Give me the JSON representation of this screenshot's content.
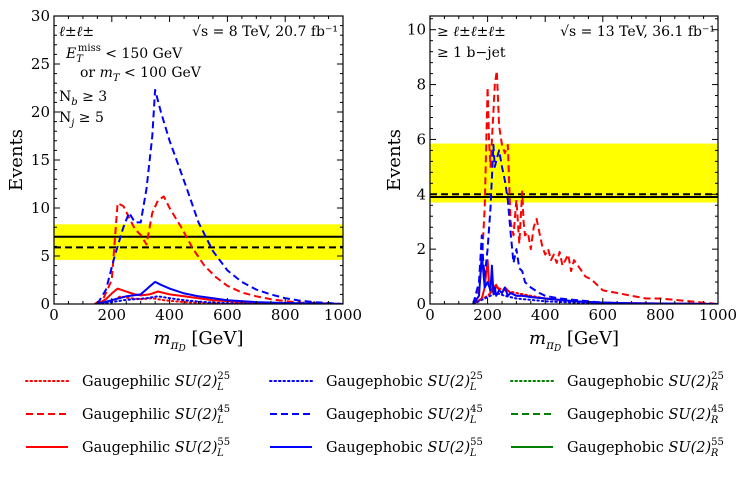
{
  "chart_data": [
    {
      "type": "line",
      "panel": "left",
      "xlabel": "m_{πD} [GeV]",
      "ylabel": "Events",
      "xlim": [
        0,
        1000
      ],
      "ylim": [
        0,
        30
      ],
      "xticks": [
        0,
        200,
        400,
        600,
        800,
        1000
      ],
      "yticks": [
        0,
        5,
        10,
        15,
        20,
        25,
        30
      ],
      "annotations": [
        "ℓ±ℓ±",
        "√s = 8 TeV, 20.7 fb⁻¹",
        "E_T^miss < 150 GeV",
        "or m_T < 100 GeV",
        "N_b ≥ 3",
        "N_j ≥ 5"
      ],
      "band": {
        "color": "#ffff00",
        "ymin": 4.6,
        "ymax": 8.3
      },
      "observed_line": {
        "y": 7.0,
        "style": "solid",
        "color": "#000000"
      },
      "expected_line": {
        "y": 5.9,
        "style": "dashed",
        "color": "#000000"
      },
      "series": [
        {
          "name": "Gaugephilic SU(2)_L^25",
          "color": "#ff0000",
          "style": "dotted",
          "x": [
            150,
            200,
            230,
            260,
            300,
            340,
            380,
            450,
            550,
            700
          ],
          "y": [
            0,
            0.3,
            0.8,
            0.6,
            0.5,
            0.6,
            0.4,
            0.2,
            0.05,
            0
          ]
        },
        {
          "name": "Gaugephilic SU(2)_L^45",
          "color": "#ff0000",
          "style": "dashed",
          "x": [
            140,
            170,
            200,
            220,
            240,
            260,
            280,
            300,
            320,
            340,
            360,
            380,
            400,
            440,
            480,
            520,
            560,
            600,
            650,
            700,
            750,
            800,
            850,
            900,
            1000
          ],
          "y": [
            0,
            0.5,
            2.5,
            10.5,
            10.2,
            9.0,
            7.8,
            7.2,
            6.2,
            9.5,
            10.8,
            11.2,
            10.0,
            8.0,
            5.8,
            4.0,
            2.8,
            1.9,
            1.2,
            0.8,
            0.5,
            0.3,
            0.15,
            0.1,
            0
          ]
        },
        {
          "name": "Gaugephilic SU(2)_L^55",
          "color": "#ff0000",
          "style": "solid",
          "x": [
            150,
            180,
            200,
            220,
            240,
            260,
            280,
            300,
            330,
            360,
            400,
            450,
            500,
            550,
            600,
            700,
            800,
            1000
          ],
          "y": [
            0,
            0.5,
            1.1,
            1.6,
            1.4,
            1.2,
            1.0,
            0.9,
            1.0,
            1.3,
            1.0,
            0.8,
            0.6,
            0.4,
            0.3,
            0.1,
            0.05,
            0
          ]
        },
        {
          "name": "Gaugephobic SU(2)_L^25",
          "color": "#0000ff",
          "style": "dotted",
          "x": [
            150,
            200,
            240,
            280,
            320,
            360,
            400,
            450,
            500,
            550,
            600,
            700
          ],
          "y": [
            0,
            0.2,
            0.4,
            0.5,
            0.6,
            0.8,
            0.6,
            0.4,
            0.25,
            0.15,
            0.08,
            0
          ]
        },
        {
          "name": "Gaugephobic SU(2)_L^45",
          "color": "#0000ff",
          "style": "dashed",
          "x": [
            150,
            180,
            210,
            240,
            260,
            280,
            300,
            320,
            340,
            350,
            370,
            400,
            430,
            460,
            500,
            550,
            600,
            650,
            700,
            750,
            800,
            850,
            900,
            1000
          ],
          "y": [
            0,
            1.5,
            5.0,
            8.0,
            9.5,
            8.5,
            8.5,
            12.0,
            17.5,
            22.3,
            20.0,
            17.0,
            14.5,
            12.0,
            8.5,
            5.5,
            3.5,
            2.3,
            1.5,
            1.0,
            0.6,
            0.35,
            0.2,
            0
          ]
        },
        {
          "name": "Gaugephobic SU(2)_L^55",
          "color": "#0000ff",
          "style": "solid",
          "x": [
            150,
            200,
            250,
            300,
            330,
            350,
            370,
            400,
            450,
            500,
            550,
            600,
            700,
            800,
            1000
          ],
          "y": [
            0,
            0.4,
            0.8,
            1.0,
            1.8,
            2.3,
            2.0,
            1.6,
            1.1,
            0.8,
            0.6,
            0.4,
            0.2,
            0.1,
            0
          ]
        }
      ]
    },
    {
      "type": "line",
      "panel": "right",
      "xlabel": "m_{πD} [GeV]",
      "ylabel": "Events",
      "xlim": [
        0,
        1000
      ],
      "ylim": [
        0,
        10.5
      ],
      "xticks": [
        0,
        200,
        400,
        600,
        800,
        1000
      ],
      "yticks": [
        0,
        2,
        4,
        6,
        8,
        10
      ],
      "annotations": [
        "≥ ℓ±ℓ±ℓ±",
        "√s = 13 TeV, 36.1 fb⁻¹",
        "≥ 1 b−jet"
      ],
      "band": {
        "color": "#ffff00",
        "ymin": 3.7,
        "ymax": 5.85
      },
      "observed_line": {
        "y": 3.9,
        "style": "solid",
        "color": "#000000"
      },
      "expected_line": {
        "y": 4.0,
        "style": "dashed",
        "color": "#000000"
      },
      "series": [
        {
          "name": "Gaugephilic SU(2)_L^25",
          "color": "#ff0000",
          "style": "dotted",
          "x": [
            150,
            200,
            230,
            260,
            300,
            350,
            400,
            500,
            600
          ],
          "y": [
            0,
            0.3,
            0.6,
            0.5,
            0.4,
            0.3,
            0.2,
            0.1,
            0
          ]
        },
        {
          "name": "Gaugephilic SU(2)_L^45",
          "color": "#ff0000",
          "style": "dashed",
          "x": [
            150,
            170,
            180,
            190,
            200,
            205,
            210,
            220,
            225,
            232,
            240,
            250,
            260,
            270,
            280,
            290,
            300,
            310,
            320,
            325,
            330,
            340,
            350,
            360,
            370,
            380,
            390,
            400,
            410,
            420,
            430,
            440,
            450,
            460,
            470,
            480,
            490,
            500,
            520,
            540,
            560,
            580,
            600,
            650,
            700,
            750,
            800,
            850,
            900,
            1000
          ],
          "y": [
            0,
            0.5,
            1.5,
            3.5,
            7.9,
            6.0,
            5.0,
            7.0,
            8.0,
            8.5,
            6.5,
            5.8,
            5.5,
            5.8,
            3.0,
            2.5,
            3.8,
            2.2,
            4.1,
            3.0,
            2.5,
            2.6,
            2.0,
            2.8,
            3.1,
            2.6,
            2.1,
            1.8,
            2.0,
            1.6,
            1.8,
            1.5,
            1.9,
            1.4,
            1.6,
            1.8,
            1.2,
            1.6,
            1.3,
            1.0,
            0.9,
            0.7,
            0.5,
            0.4,
            0.3,
            0.2,
            0.2,
            0.15,
            0.1,
            0
          ]
        },
        {
          "name": "Gaugephilic SU(2)_L^55",
          "color": "#ff0000",
          "style": "solid",
          "x": [
            150,
            180,
            190,
            200,
            205,
            210,
            220,
            230,
            240,
            250,
            260,
            270,
            280,
            300,
            330,
            360,
            400,
            450,
            500,
            600,
            700,
            800,
            1000
          ],
          "y": [
            0,
            0.2,
            0.6,
            1.6,
            0.8,
            0.4,
            0.6,
            0.7,
            0.5,
            0.4,
            0.6,
            0.5,
            0.4,
            0.3,
            0.3,
            0.25,
            0.2,
            0.15,
            0.1,
            0.05,
            0.03,
            0.02,
            0
          ]
        },
        {
          "name": "Gaugephobic SU(2)_L^25",
          "color": "#0000ff",
          "style": "dotted",
          "x": [
            150,
            190,
            230,
            260,
            300,
            350,
            400,
            500,
            600
          ],
          "y": [
            0,
            0.2,
            0.4,
            0.3,
            0.2,
            0.15,
            0.1,
            0.05,
            0
          ]
        },
        {
          "name": "Gaugephobic SU(2)_L^45",
          "color": "#0000ff",
          "style": "dashed",
          "x": [
            150,
            170,
            180,
            185,
            190,
            200,
            210,
            220,
            225,
            232,
            240,
            250,
            260,
            270,
            280,
            290,
            300,
            310,
            320,
            330,
            350,
            380,
            400,
            450,
            500,
            550,
            600,
            700,
            800,
            1000
          ],
          "y": [
            0,
            0.8,
            2.5,
            1.5,
            1.0,
            2.0,
            3.5,
            5.8,
            5.0,
            5.3,
            5.6,
            5.0,
            4.5,
            3.8,
            2.6,
            1.5,
            2.0,
            1.3,
            1.2,
            0.8,
            0.6,
            0.4,
            0.3,
            0.2,
            0.15,
            0.1,
            0.05,
            0.02,
            0.01,
            0
          ]
        },
        {
          "name": "Gaugephobic SU(2)_L^55",
          "color": "#0000ff",
          "style": "solid",
          "x": [
            150,
            170,
            180,
            190,
            200,
            210,
            215,
            220,
            225,
            230,
            240,
            250,
            260,
            270,
            280,
            300,
            320,
            350,
            400,
            450,
            500,
            600,
            700,
            800,
            1000
          ],
          "y": [
            0,
            0.3,
            1.8,
            0.6,
            0.8,
            0.5,
            1.4,
            0.4,
            0.6,
            0.3,
            0.5,
            0.4,
            0.6,
            0.3,
            0.4,
            0.3,
            0.3,
            0.25,
            0.2,
            0.15,
            0.1,
            0.05,
            0.03,
            0.02,
            0
          ]
        }
      ]
    }
  ],
  "legend": [
    {
      "base": "Gaugephilic",
      "group": "SU(2)",
      "sup": "25",
      "sub": "L",
      "color": "#ff0000",
      "style": "dotted"
    },
    {
      "base": "Gaugephobic",
      "group": "SU(2)",
      "sup": "25",
      "sub": "L",
      "color": "#0000ff",
      "style": "dotted"
    },
    {
      "base": "Gaugephobic",
      "group": "SU(2)",
      "sup": "25",
      "sub": "R",
      "color": "#008000",
      "style": "dotted"
    },
    {
      "base": "Gaugephilic",
      "group": "SU(2)",
      "sup": "45",
      "sub": "L",
      "color": "#ff0000",
      "style": "dashed"
    },
    {
      "base": "Gaugephobic",
      "group": "SU(2)",
      "sup": "45",
      "sub": "L",
      "color": "#0000ff",
      "style": "dashed"
    },
    {
      "base": "Gaugephobic",
      "group": "SU(2)",
      "sup": "45",
      "sub": "R",
      "color": "#008000",
      "style": "dashed"
    },
    {
      "base": "Gaugephilic",
      "group": "SU(2)",
      "sup": "55",
      "sub": "L",
      "color": "#ff0000",
      "style": "solid"
    },
    {
      "base": "Gaugephobic",
      "group": "SU(2)",
      "sup": "55",
      "sub": "L",
      "color": "#0000ff",
      "style": "solid"
    },
    {
      "base": "Gaugephobic",
      "group": "SU(2)",
      "sup": "55",
      "sub": "R",
      "color": "#008000",
      "style": "solid"
    }
  ]
}
